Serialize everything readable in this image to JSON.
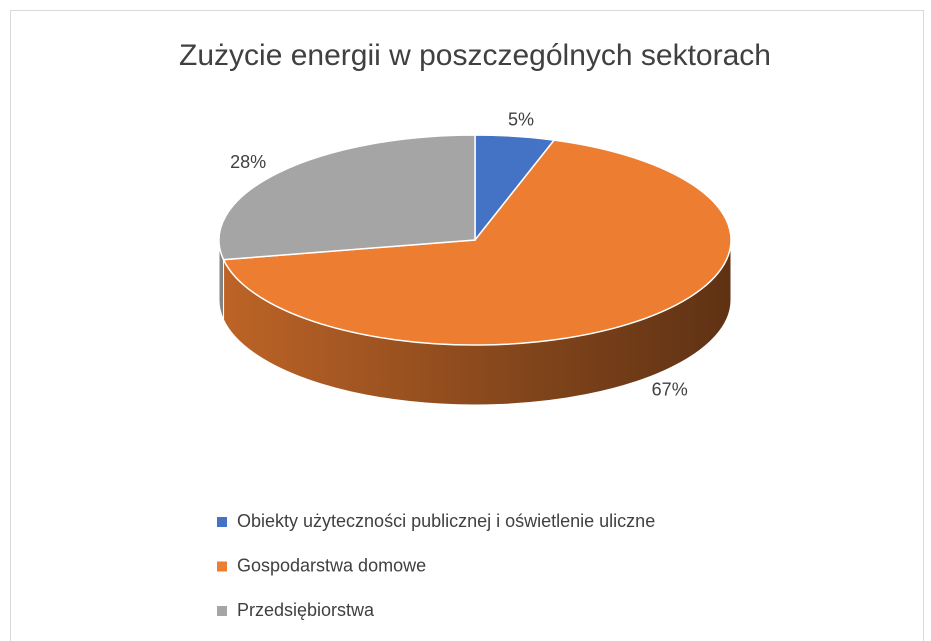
{
  "chart_data": {
    "type": "pie",
    "title": "Zużycie energii w poszczególnych sektorach",
    "categories": [
      "Obiekty użyteczności publicznej i oświetlenie uliczne",
      "Gospodarstwa domowe",
      "Przedsiębiorstwa"
    ],
    "values": [
      5,
      67,
      28
    ],
    "value_labels": [
      "5%",
      "67%",
      "28%"
    ],
    "colors": [
      "#4472c4",
      "#ed7d31",
      "#a5a5a5"
    ],
    "legend": "bottom"
  }
}
